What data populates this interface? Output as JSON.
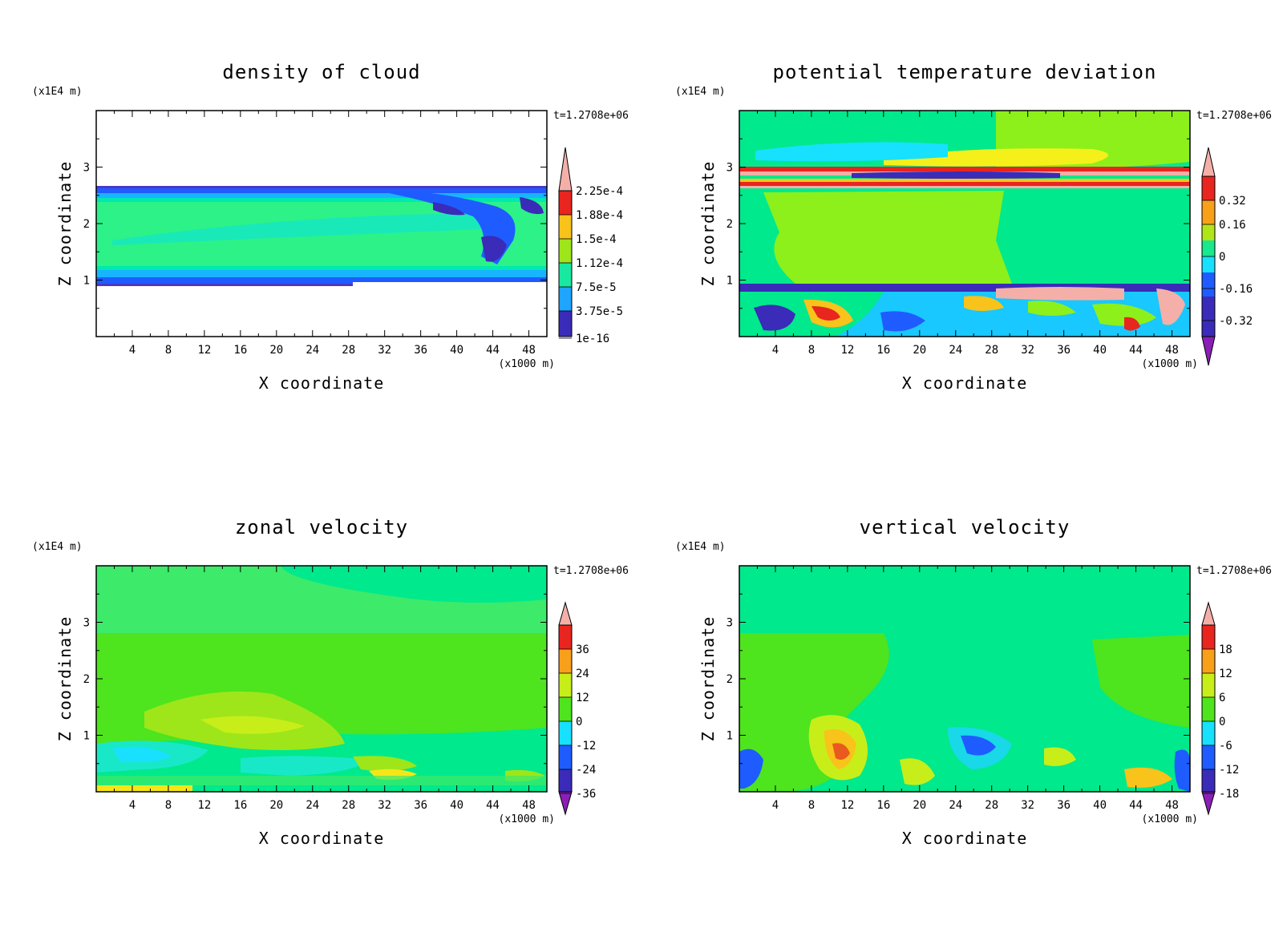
{
  "chart_data": [
    {
      "type": "heatmap",
      "title": "density of cloud",
      "xlabel": "X coordinate",
      "ylabel": "Z coordinate",
      "x_scale_label": "(x1000 m)",
      "y_scale_label": "(x1E4 m)",
      "time_label": "t=1.2708e+06",
      "xlim": [
        0,
        50
      ],
      "ylim": [
        0,
        4
      ],
      "x_ticks": [
        "4",
        "8",
        "12",
        "16",
        "20",
        "24",
        "28",
        "32",
        "36",
        "40",
        "44",
        "48"
      ],
      "y_ticks": [
        "1",
        "2",
        "3"
      ],
      "colorbar_labels": [
        "2.25e-4",
        "1.88e-4",
        "1.5e-4",
        "1.12e-4",
        "7.5e-5",
        "3.75e-5",
        "1e-16"
      ],
      "colorbar": {
        "min": 0,
        "max": 0.00025,
        "extends": "max"
      }
    },
    {
      "type": "heatmap",
      "title": "potential temperature deviation",
      "xlabel": "X coordinate",
      "ylabel": "Z coordinate",
      "x_scale_label": "(x1000 m)",
      "y_scale_label": "(x1E4 m)",
      "time_label": "t=1.2708e+06",
      "xlim": [
        0,
        50
      ],
      "ylim": [
        0,
        4
      ],
      "x_ticks": [
        "4",
        "8",
        "12",
        "16",
        "20",
        "24",
        "28",
        "32",
        "36",
        "40",
        "44",
        "48"
      ],
      "y_ticks": [
        "1",
        "2",
        "3"
      ],
      "colorbar_labels": [
        "0.32",
        "0.16",
        "0",
        "-0.16",
        "-0.32"
      ],
      "colorbar": {
        "min": -0.4,
        "max": 0.4,
        "extends": "both"
      }
    },
    {
      "type": "heatmap",
      "title": "zonal velocity",
      "xlabel": "X coordinate",
      "ylabel": "Z coordinate",
      "x_scale_label": "(x1000 m)",
      "y_scale_label": "(x1E4 m)",
      "time_label": "t=1.2708e+06",
      "xlim": [
        0,
        50
      ],
      "ylim": [
        0,
        4
      ],
      "x_ticks": [
        "4",
        "8",
        "12",
        "16",
        "20",
        "24",
        "28",
        "32",
        "36",
        "40",
        "44",
        "48"
      ],
      "y_ticks": [
        "1",
        "2",
        "3"
      ],
      "colorbar_labels": [
        "36",
        "24",
        "12",
        "0",
        "-12",
        "-24",
        "-36"
      ],
      "colorbar": {
        "min": -42,
        "max": 42,
        "extends": "both"
      }
    },
    {
      "type": "heatmap",
      "title": "vertical velocity",
      "xlabel": "X coordinate",
      "ylabel": "Z coordinate",
      "x_scale_label": "(x1000 m)",
      "y_scale_label": "(x1E4 m)",
      "time_label": "t=1.2708e+06",
      "xlim": [
        0,
        50
      ],
      "ylim": [
        0,
        4
      ],
      "x_ticks": [
        "4",
        "8",
        "12",
        "16",
        "20",
        "24",
        "28",
        "32",
        "36",
        "40",
        "44",
        "48"
      ],
      "y_ticks": [
        "1",
        "2",
        "3"
      ],
      "colorbar_labels": [
        "18",
        "12",
        "6",
        "0",
        "-6",
        "-12",
        "-18"
      ],
      "colorbar": {
        "min": -21,
        "max": 21,
        "extends": "both"
      }
    }
  ]
}
